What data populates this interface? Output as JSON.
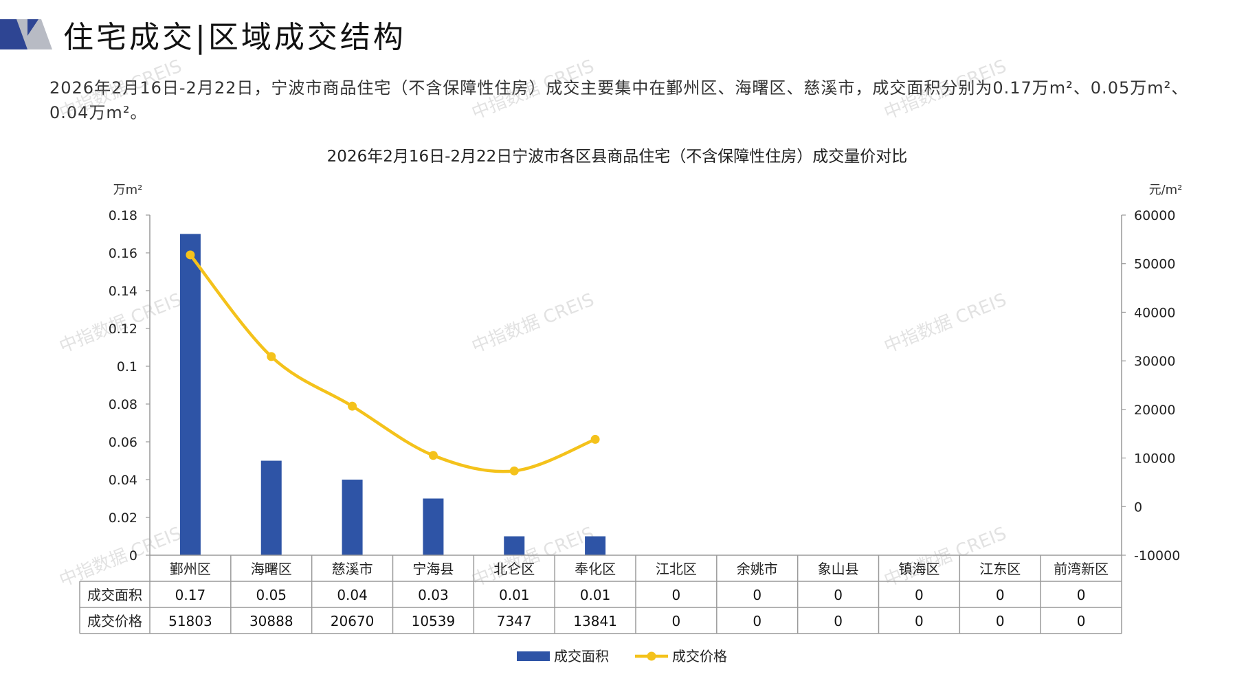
{
  "header": {
    "title": "住宅成交|区域成交结构",
    "summary": "2026年2月16日-2月22日，宁波市商品住宅（不含保障性住房）成交主要集中在鄞州区、海曙区、慈溪市，成交面积分别为0.17万m²、0.05万m²、0.04万m²。"
  },
  "watermark": "中指数据 CREIS",
  "colors": {
    "bar": "#2E54A6",
    "line": "#F4C21B",
    "deco_dark": "#2E4593",
    "deco_light": "#B8BBC4"
  },
  "chart_data": {
    "type": "bar",
    "title": "2026年2月16日-2月22日宁波市各区县商品住宅（不含保障性住房）成交量价对比",
    "categories": [
      "鄞州区",
      "海曙区",
      "慈溪市",
      "宁海县",
      "北仑区",
      "奉化区",
      "江北区",
      "余姚市",
      "象山县",
      "镇海区",
      "江东区",
      "前湾新区"
    ],
    "series": [
      {
        "name": "成交面积",
        "type": "bar",
        "axis": "left",
        "values": [
          0.17,
          0.05,
          0.04,
          0.03,
          0.01,
          0.01,
          0,
          0,
          0,
          0,
          0,
          0
        ]
      },
      {
        "name": "成交价格",
        "type": "line",
        "axis": "right",
        "smooth": true,
        "values": [
          51803,
          30888,
          20670,
          10539,
          7347,
          13841,
          0,
          0,
          0,
          0,
          0,
          0
        ]
      }
    ],
    "table": {
      "rows": [
        {
          "label": "成交面积",
          "cells": [
            "0.17",
            "0.05",
            "0.04",
            "0.03",
            "0.01",
            "0.01",
            "0",
            "0",
            "0",
            "0",
            "0",
            "0"
          ]
        },
        {
          "label": "成交价格",
          "cells": [
            "51803",
            "30888",
            "20670",
            "10539",
            "7347",
            "13841",
            "0",
            "0",
            "0",
            "0",
            "0",
            "0"
          ]
        }
      ]
    },
    "y_left": {
      "unit": "万m²",
      "ylim": [
        0,
        0.18
      ],
      "ticks": [
        "0",
        "0.02",
        "0.04",
        "0.06",
        "0.08",
        "0.1",
        "0.12",
        "0.14",
        "0.16",
        "0.18"
      ]
    },
    "y_right": {
      "unit": "元/m²",
      "ylim": [
        -10000,
        60000
      ],
      "ticks": [
        "-10000",
        "0",
        "10000",
        "20000",
        "30000",
        "40000",
        "50000",
        "60000"
      ]
    },
    "grid": false,
    "legend_position": "bottom-center"
  }
}
